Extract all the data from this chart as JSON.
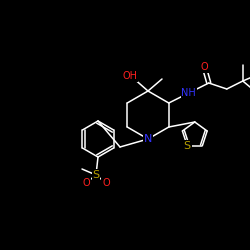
{
  "background": "#000000",
  "bond_color": "#ffffff",
  "atom_colors": {
    "N": "#3333ff",
    "O": "#ff2020",
    "S": "#b8a000",
    "C": "#ffffff",
    "H": "#ffffff"
  },
  "fig_size": [
    2.5,
    2.5
  ],
  "dpi": 100
}
